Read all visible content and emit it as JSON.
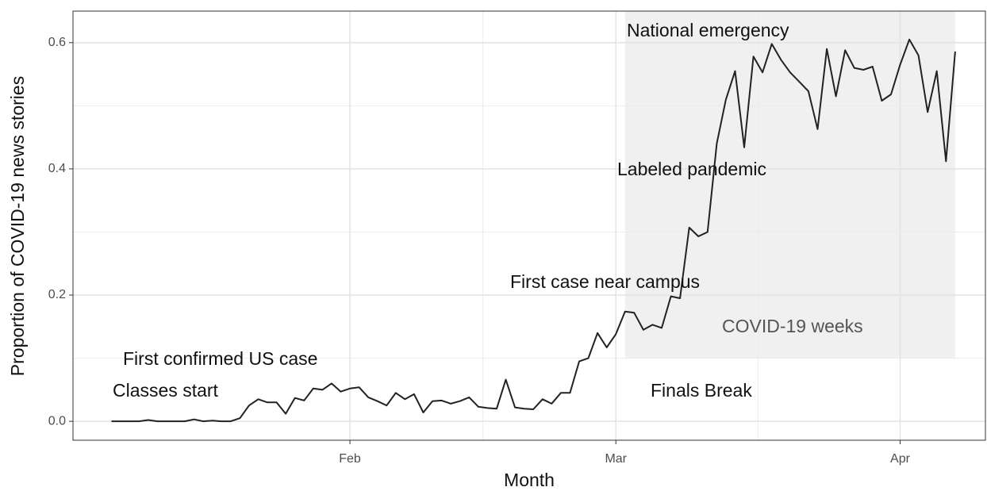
{
  "chart_data": {
    "type": "line",
    "x_label": "Month",
    "y_label": "Proportion of COVID-19 news stories",
    "annotations": [
      "National emergency",
      "Labeled pandemic",
      "First case near campus",
      "COVID-19 weeks",
      "First confirmed US case",
      "Classes start",
      "Finals Break"
    ],
    "shaded_region": {
      "xlim": [
        62,
        98
      ],
      "ylim": [
        0.1,
        0.65
      ],
      "color": "#f0f0f0"
    },
    "x": [
      6,
      7,
      8,
      9,
      10,
      11,
      12,
      13,
      14,
      15,
      16,
      17,
      18,
      19,
      20,
      21,
      22,
      23,
      24,
      25,
      26,
      27,
      28,
      29,
      30,
      31,
      32,
      33,
      34,
      35,
      36,
      37,
      38,
      39,
      40,
      41,
      42,
      43,
      44,
      45,
      46,
      47,
      48,
      49,
      50,
      51,
      52,
      53,
      54,
      55,
      56,
      57,
      58,
      59,
      60,
      61,
      62,
      63,
      64,
      65,
      66,
      67,
      68,
      69,
      70,
      71,
      72,
      73,
      74,
      75,
      76,
      77,
      78,
      79,
      80,
      81,
      82,
      83,
      84,
      85,
      86,
      87,
      88,
      89,
      90,
      91,
      92,
      93,
      94,
      95,
      96,
      97,
      98
    ],
    "series": [
      {
        "name": "Proportion",
        "color": "#222222",
        "values": [
          0,
          0,
          0,
          0,
          0.002,
          0,
          0,
          0,
          0,
          0.003,
          0,
          0.001,
          0,
          0,
          0.005,
          0.025,
          0.035,
          0.03,
          0.03,
          0.012,
          0.037,
          0.033,
          0.052,
          0.05,
          0.06,
          0.047,
          0.052,
          0.054,
          0.038,
          0.032,
          0.025,
          0.045,
          0.035,
          0.043,
          0.014,
          0.032,
          0.033,
          0.028,
          0.032,
          0.038,
          0.023,
          0.021,
          0.02,
          0.066,
          0.022,
          0.02,
          0.019,
          0.035,
          0.028,
          0.045,
          0.045,
          0.095,
          0.1,
          0.14,
          0.117,
          0.138,
          0.174,
          0.172,
          0.145,
          0.153,
          0.148,
          0.198,
          0.195,
          0.307,
          0.293,
          0.3,
          0.44,
          0.51,
          0.555,
          0.434,
          0.578,
          0.553,
          0.598,
          0.573,
          0.553,
          0.538,
          0.523,
          0.463,
          0.59,
          0.515,
          0.588,
          0.56,
          0.557,
          0.562,
          0.508,
          0.518,
          0.565,
          0.605,
          0.58,
          0.49,
          0.555,
          0.412,
          0.586
        ]
      }
    ],
    "xlim": [
      1.8,
      101.3
    ],
    "ylim": [
      -0.03,
      0.65
    ],
    "xticks": [
      {
        "value": 32,
        "label": "Feb"
      },
      {
        "value": 61,
        "label": "Mar"
      },
      {
        "value": 92,
        "label": "Apr"
      }
    ],
    "yticks": [
      {
        "value": 0,
        "label": "0.0"
      },
      {
        "value": 0.2,
        "label": "0.2"
      },
      {
        "value": 0.4,
        "label": "0.4"
      },
      {
        "value": 0.6,
        "label": "0.6"
      }
    ],
    "grid": true
  }
}
